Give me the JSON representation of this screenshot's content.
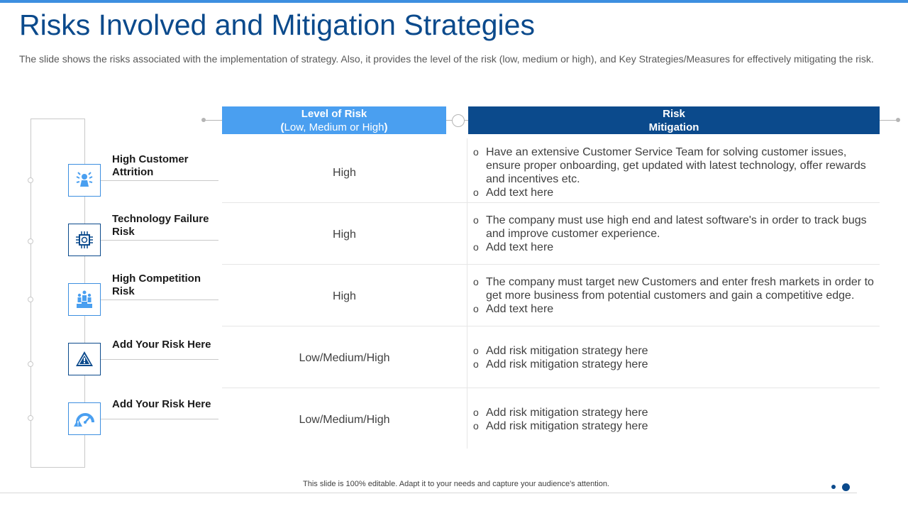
{
  "header": {
    "title": "Risks Involved and Mitigation Strategies",
    "subtitle": "The slide shows the risks associated with the implementation of strategy. Also, it provides the level of the risk (low, medium or high), and Key Strategies/Measures for effectively mitigating the risk."
  },
  "columns": {
    "level": {
      "line1": "Level of Risk",
      "paren_open": "(",
      "line2": "Low, Medium or High",
      "paren_close": ")"
    },
    "mitigation": {
      "line1": "Risk",
      "line2": "Mitigation"
    }
  },
  "rows": [
    {
      "risk": "High Customer Attrition",
      "icon": "customer-support-icon",
      "level": "High",
      "mitigation": [
        "Have an extensive Customer Service Team for solving customer issues, ensure proper onboarding, get updated with latest technology, offer rewards and incentives etc.",
        "Add text here"
      ]
    },
    {
      "risk": "Technology Failure Risk",
      "icon": "chip-icon",
      "level": "High",
      "mitigation": [
        "The company must use high end and latest software's in order to track bugs and improve customer experience.",
        "Add text here"
      ]
    },
    {
      "risk": "High Competition Risk",
      "icon": "competition-podium-icon",
      "level": "High",
      "mitigation": [
        "The company must target new Customers and enter fresh markets in order to get more business from potential customers and gain a competitive edge.",
        "Add text here"
      ]
    },
    {
      "risk": "Add  Your Risk Here",
      "icon": "warning-icon",
      "level": "Low/Medium/High",
      "mitigation": [
        "Add risk mitigation strategy here",
        "Add risk mitigation strategy here"
      ]
    },
    {
      "risk": "Add  Your Risk Here",
      "icon": "gauge-warning-icon",
      "level": "Low/Medium/High",
      "mitigation": [
        "Add risk mitigation strategy here",
        "Add risk mitigation strategy here"
      ]
    }
  ],
  "footer": {
    "note": "This slide is 100% editable.  Adapt it to your needs and capture your audience's attention."
  },
  "colors": {
    "accent_light": "#4a9ff0",
    "accent_dark": "#0b4a8c"
  }
}
